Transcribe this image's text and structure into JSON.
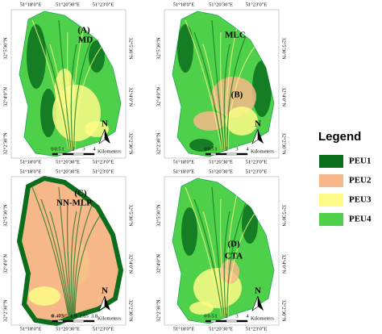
{
  "panels": [
    {
      "label": "(A)",
      "method": "MD",
      "top_coords": [
        "51°18'0\"E",
        "51°20'30\"E",
        "51°23'0\"E"
      ],
      "bottom_coords": [
        "51°18'0\"E",
        "51°20'30\"E",
        "51°23'0\"E"
      ],
      "left_coords": [
        "32°5'30\"N",
        "32°4'0\"N",
        "32°2'30\"N"
      ],
      "right_coords": [
        "32°5'30\"N",
        "32°4'0\"N",
        "32°2'30\"N"
      ],
      "scale": [
        "0",
        "0.5",
        "1",
        "2",
        "3",
        "4"
      ],
      "scale_unit": "Kilometers",
      "north": "N"
    },
    {
      "label": "(B)",
      "method": "MLC",
      "top_coords": [
        "51°18'0\"E",
        "51°20'30\"E",
        "51°23'0\"E"
      ],
      "bottom_coords": [
        "51°18'0\"E",
        "51°20'30\"E",
        "51°23'0\"E"
      ],
      "left_coords": [
        "32°5'30\"N",
        "32°4'0\"N",
        "32°2'30\"N"
      ],
      "right_coords": [
        "32°5'30\"N",
        "32°4'0\"N",
        "32°2'30\"N"
      ],
      "scale": [
        "0",
        "0.5",
        "1",
        "2",
        "3",
        "4"
      ],
      "scale_unit": "Kilometers",
      "north": "N"
    },
    {
      "label": "(C)",
      "method": "NN-MLP",
      "top_coords": [
        "51°18'0\"E",
        "51°20'30\"E",
        "51°23'0\"E"
      ],
      "bottom_coords": [
        "51°18'0\"E",
        "51°20'30\"E",
        "51°23'0\"E"
      ],
      "left_coords": [
        "32°5'30\"N",
        "32°4'0\"N",
        "32°2'30\"N"
      ],
      "right_coords": [
        "32°5'30\"N",
        "32°4'0\"N",
        "32°2'30\"N"
      ],
      "scale": [
        "0",
        "0.475",
        "0.95",
        "1.9",
        "2.85",
        "3.8"
      ],
      "scale_unit": "Kilometers",
      "north": "N"
    },
    {
      "label": "(D)",
      "method": "CTA",
      "top_coords": [
        "51°18'0\"E",
        "51°20'30\"E",
        "51°23'0\"E"
      ],
      "bottom_coords": [
        "51°18'0\"E",
        "51°20'30\"E",
        "51°23'0\"E"
      ],
      "left_coords": [
        "32°5'30\"N",
        "32°4'0\"N",
        "32°2'30\"N"
      ],
      "right_coords": [
        "32°5'30\"N",
        "32°4'0\"N",
        "32°2'30\"N"
      ],
      "scale": [
        "0",
        "0.5",
        "1",
        "2",
        "3",
        "4"
      ],
      "scale_unit": "Kilometers",
      "north": "N"
    }
  ],
  "legend": {
    "title": "Legend",
    "items": [
      {
        "label": "PEU1",
        "color": "#0b6e1c"
      },
      {
        "label": "PEU2",
        "color": "#f7b889"
      },
      {
        "label": "PEU3",
        "color": "#fdfb86"
      },
      {
        "label": "PEU4",
        "color": "#4fd04a"
      }
    ]
  }
}
